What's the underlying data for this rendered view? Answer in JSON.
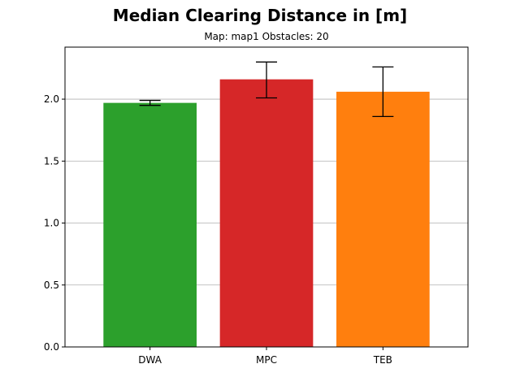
{
  "chart_data": {
    "type": "bar",
    "title": "Median Clearing Distance in [m]",
    "subtitle": "Map: map1 Obstacles: 20",
    "categories": [
      "DWA",
      "MPC",
      "TEB"
    ],
    "values": [
      1.97,
      2.16,
      2.06
    ],
    "error_low": [
      1.95,
      2.01,
      1.86
    ],
    "error_high": [
      1.99,
      2.3,
      2.26
    ],
    "colors": [
      "#2ca02c",
      "#d62728",
      "#ff7f0e"
    ],
    "ylim": [
      0,
      2.42
    ],
    "yticks": [
      0.0,
      0.5,
      1.0,
      1.5,
      2.0
    ],
    "ytick_labels": [
      "0.0",
      "0.5",
      "1.0",
      "1.5",
      "2.0"
    ],
    "xlabel": "",
    "ylabel": "",
    "grid": "y-axis horizontal lines",
    "legend": "none"
  }
}
